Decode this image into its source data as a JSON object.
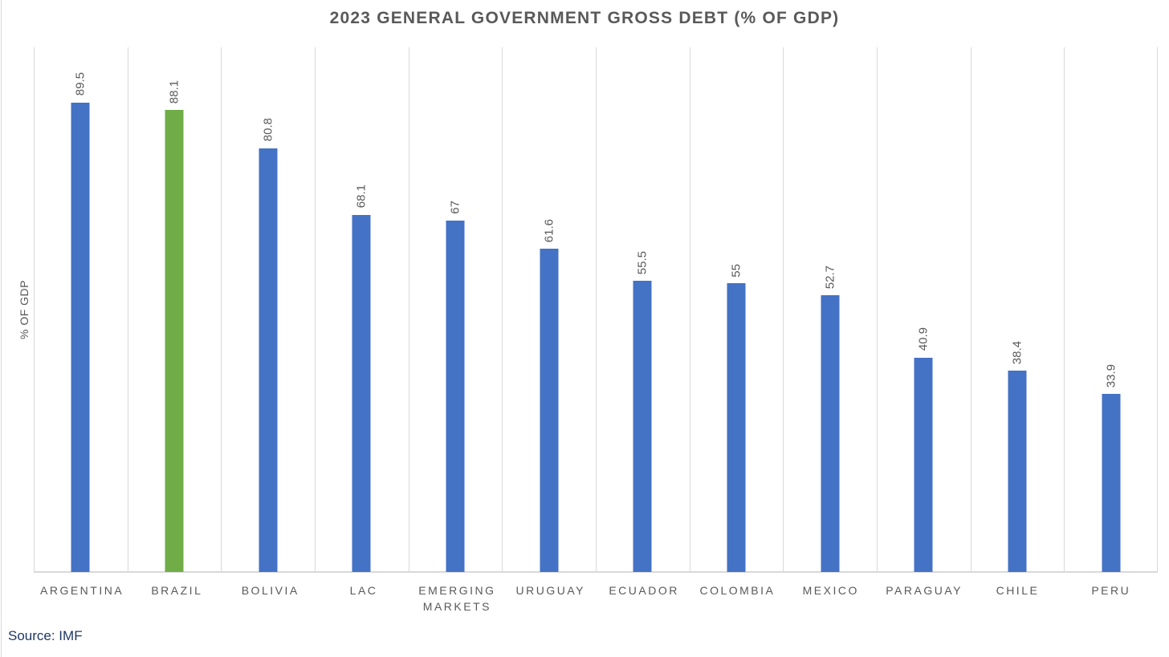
{
  "chart_data": {
    "type": "bar",
    "title": "2023 GENERAL GOVERNMENT GROSS DEBT (% OF GDP)",
    "categories": [
      "ARGENTINA",
      "BRAZIL",
      "BOLIVIA",
      "LAC",
      "EMERGING MARKETS",
      "URUGUAY",
      "ECUADOR",
      "COLOMBIA",
      "MEXICO",
      "PARAGUAY",
      "CHILE",
      "PERU"
    ],
    "values": [
      89.5,
      88.1,
      80.8,
      68.1,
      67,
      61.6,
      55.5,
      55,
      52.7,
      40.9,
      38.4,
      33.9
    ],
    "value_labels": [
      "89.5",
      "88.1",
      "80.8",
      "68.1",
      "67",
      "61.6",
      "55.5",
      "55",
      "52.7",
      "40.9",
      "38.4",
      "33.9"
    ],
    "xlabel": "",
    "ylabel": "% OF GDP",
    "ylim": [
      0,
      100
    ],
    "grid": "vertical category separators only",
    "legend": "none",
    "value_label_rotation_degrees": 90,
    "highlight_category": "BRAZIL",
    "bar_color": "#4472c4",
    "highlight_bar_color": "#70ad47",
    "gridline_color": "#d9d9d9",
    "text_color": "#595959"
  },
  "source": {
    "label": "Source: IMF",
    "color": "#1f3864"
  }
}
